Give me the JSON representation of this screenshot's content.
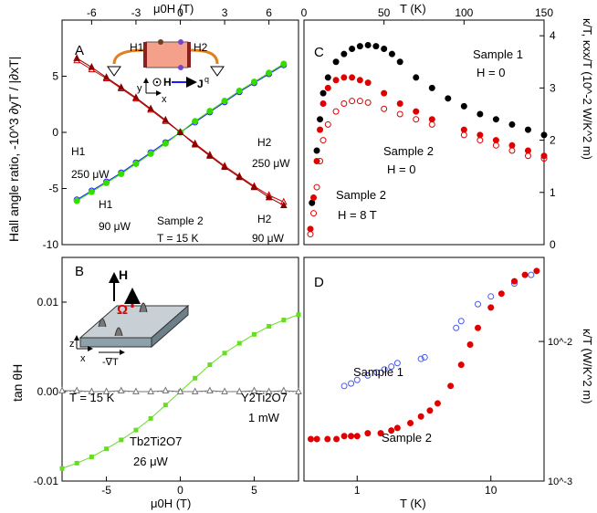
{
  "chart_data": [
    {
      "panel": "A",
      "type": "line",
      "xlabel_top": "μ0H (T)",
      "ylabel": "Hall angle ratio, -10^3 ∂yT / |∂xT|",
      "xlim": [
        -8,
        8
      ],
      "ylim": [
        -10,
        10
      ],
      "x_ticks_top": [
        -6,
        -3,
        0,
        3,
        6
      ],
      "y_ticks": [
        -10,
        -5,
        0,
        5
      ],
      "series": [
        {
          "name": "H1 250 μW",
          "marker": "open-circle",
          "color": "#1a1aff",
          "x": [
            -7,
            -6,
            -5,
            -4,
            -3,
            -2,
            -1,
            0,
            1,
            2,
            3,
            4,
            5,
            6,
            7
          ],
          "y": [
            -6.0,
            -5.2,
            -4.4,
            -3.6,
            -2.7,
            -1.8,
            -0.9,
            0,
            0.9,
            1.8,
            2.7,
            3.6,
            4.4,
            5.2,
            6.0
          ]
        },
        {
          "name": "H1 90 μW",
          "marker": "filled-circle",
          "color": "#33dd00",
          "x": [
            -7,
            -6,
            -5,
            -4,
            -3,
            -2,
            -1,
            0,
            1,
            2,
            3,
            4,
            5,
            6,
            7
          ],
          "y": [
            -6.1,
            -5.3,
            -4.5,
            -3.7,
            -2.8,
            -1.9,
            -1.0,
            0,
            1.0,
            1.9,
            2.8,
            3.7,
            4.5,
            5.3,
            6.1
          ]
        },
        {
          "name": "H2 250 μW",
          "marker": "open-triangle",
          "color": "#cc0000",
          "x": [
            -7,
            -6,
            -5,
            -4,
            -3,
            -2,
            -1,
            0,
            1,
            2,
            3,
            4,
            5,
            6,
            7
          ],
          "y": [
            6.4,
            5.6,
            4.8,
            3.9,
            3.0,
            2.0,
            1.0,
            0,
            -1.0,
            -2.0,
            -3.0,
            -3.9,
            -4.8,
            -5.6,
            -6.2
          ]
        },
        {
          "name": "H2 90 μW",
          "marker": "filled-triangle",
          "color": "#8b0000",
          "x": [
            -7,
            -6,
            -5,
            -4,
            -3,
            -2,
            -1,
            0,
            1,
            2,
            3,
            4,
            5,
            6,
            7
          ],
          "y": [
            6.6,
            5.8,
            4.9,
            4.0,
            3.1,
            2.1,
            1.1,
            0,
            -1.1,
            -2.1,
            -3.1,
            -4.0,
            -4.9,
            -5.8,
            -6.5
          ]
        }
      ],
      "annotations": [
        "A",
        "H1",
        "250 μW",
        "H1",
        "90 μW",
        "H2",
        "250 μW",
        "H2",
        "90 μW",
        "Sample 2",
        "T = 15 K",
        "H1",
        "H2",
        "H",
        "J",
        "q",
        "y",
        "x"
      ]
    },
    {
      "panel": "B",
      "type": "scatter",
      "xlabel": "μ0H (T)",
      "ylabel": "tan θH",
      "xlim": [
        -8,
        8
      ],
      "ylim": [
        -0.01,
        0.015
      ],
      "x_ticks": [
        -5,
        0,
        5
      ],
      "y_ticks": [
        -0.01,
        0.0,
        0.01
      ],
      "x_tick_labels": [
        "-5",
        "0",
        "5"
      ],
      "y_tick_labels": [
        "-0.01",
        "0.00",
        "0.01"
      ],
      "series": [
        {
          "name": "Tb2Ti2O7 26 μW",
          "marker": "filled-square",
          "color": "#66dd22",
          "x": [
            -8,
            -7,
            -6,
            -5,
            -4,
            -3,
            -2,
            -1,
            0,
            1,
            2,
            3,
            4,
            5,
            6,
            7,
            8
          ],
          "y": [
            -0.0086,
            -0.008,
            -0.0073,
            -0.0064,
            -0.0054,
            -0.0043,
            -0.003,
            -0.0015,
            0.0,
            0.0015,
            0.003,
            0.0043,
            0.0054,
            0.0064,
            0.0073,
            0.008,
            0.0086
          ]
        },
        {
          "name": "Y2Ti2O7 1 mW",
          "marker": "open-triangle",
          "color": "#777777",
          "x": [
            -8,
            -7,
            -6,
            -5,
            -4,
            -3,
            -2,
            -1,
            0,
            1,
            2,
            3,
            4,
            5,
            6,
            7,
            8
          ],
          "y": [
            0.0001,
            0.0001,
            0.0,
            0.0,
            0.0001,
            0.0,
            0.0,
            0.0001,
            0.0,
            0.0,
            0.0001,
            0.0,
            0.0,
            0.0001,
            0.0,
            0.0001,
            0.0
          ]
        }
      ],
      "annotations": [
        "B",
        "T = 15 K",
        "Tb2Ti2O7",
        "26 μW",
        "Y2Ti2O7",
        "1 mW",
        "H",
        "Ω",
        "z",
        "x",
        "-∇T"
      ]
    },
    {
      "panel": "C",
      "type": "scatter",
      "xlabel_top": "T (K)",
      "ylabel_right": "κ/T, κxx/T (10^-2 W/K^2 m)",
      "xlim": [
        0,
        150
      ],
      "ylim": [
        0,
        4.3
      ],
      "x_ticks_top": [
        0,
        50,
        100,
        150
      ],
      "y_ticks": [
        0,
        1,
        2,
        3,
        4
      ],
      "series": [
        {
          "name": "Sample 1 H = 0",
          "marker": "filled-circle",
          "color": "#000000",
          "x": [
            5,
            8,
            10,
            12,
            15,
            20,
            25,
            30,
            35,
            40,
            45,
            50,
            55,
            60,
            70,
            80,
            90,
            100,
            110,
            120,
            130,
            140,
            150
          ],
          "y": [
            0.8,
            1.8,
            2.4,
            2.9,
            3.2,
            3.5,
            3.65,
            3.75,
            3.8,
            3.82,
            3.8,
            3.75,
            3.65,
            3.5,
            3.2,
            3.0,
            2.8,
            2.65,
            2.5,
            2.4,
            2.3,
            2.2,
            2.1
          ]
        },
        {
          "name": "Sample 2 H = 0",
          "marker": "filled-circle",
          "color": "#e00000",
          "x": [
            4,
            6,
            8,
            10,
            12,
            15,
            20,
            25,
            30,
            35,
            40,
            50,
            60,
            70,
            80,
            100,
            110,
            120,
            130,
            140,
            150
          ],
          "y": [
            0.3,
            0.9,
            1.6,
            2.2,
            2.7,
            3.0,
            3.15,
            3.2,
            3.2,
            3.15,
            3.1,
            2.9,
            2.7,
            2.55,
            2.4,
            2.2,
            2.1,
            2.0,
            1.9,
            1.8,
            1.7
          ]
        },
        {
          "name": "Sample 2 H = 8 T",
          "marker": "open-circle",
          "color": "#e00000",
          "x": [
            4,
            6,
            8,
            10,
            12,
            15,
            20,
            25,
            30,
            35,
            40,
            50,
            60,
            70,
            80,
            100,
            110,
            120,
            130,
            140,
            150
          ],
          "y": [
            0.2,
            0.6,
            1.1,
            1.6,
            2.0,
            2.3,
            2.55,
            2.7,
            2.75,
            2.75,
            2.72,
            2.6,
            2.5,
            2.4,
            2.3,
            2.1,
            2.0,
            1.9,
            1.8,
            1.7,
            1.65
          ]
        }
      ],
      "annotations": [
        "C",
        "Sample 1",
        "H = 0",
        "Sample 2",
        "H = 0",
        "Sample 2",
        "H = 8 T"
      ]
    },
    {
      "panel": "D",
      "type": "scatter",
      "xlabel": "T (K)",
      "ylabel_right": "κ/T (W/K^2 m)",
      "x_scale": "log",
      "y_scale": "log",
      "xlim": [
        0.4,
        25
      ],
      "ylim": [
        0.001,
        0.04
      ],
      "x_ticks": [
        1,
        10
      ],
      "y_ticks": [
        0.001,
        0.01
      ],
      "x_tick_labels": [
        "1",
        "10"
      ],
      "y_tick_labels": [
        "10^-3",
        "10^-2"
      ],
      "series": [
        {
          "name": "Sample 1",
          "marker": "open-circle",
          "color": "#4a5ae8",
          "x": [
            0.8,
            0.9,
            1.0,
            1.2,
            1.4,
            1.6,
            1.8,
            2.0,
            3.0,
            3.2,
            5.5,
            6.0,
            8.0,
            10.0,
            15.0,
            20.0
          ],
          "y": [
            0.0048,
            0.005,
            0.0053,
            0.0057,
            0.006,
            0.0063,
            0.0066,
            0.007,
            0.0075,
            0.0077,
            0.0125,
            0.014,
            0.0185,
            0.021,
            0.026,
            0.03
          ]
        },
        {
          "name": "Sample 2",
          "marker": "filled-circle",
          "color": "#e00000",
          "x": [
            0.45,
            0.5,
            0.6,
            0.7,
            0.8,
            0.9,
            1.0,
            1.2,
            1.5,
            1.8,
            2.0,
            2.5,
            3.0,
            3.5,
            4.0,
            5.0,
            6.0,
            7.0,
            8.0,
            10.0,
            12.0,
            15.0,
            18.0,
            22.0
          ],
          "y": [
            0.002,
            0.002,
            0.002,
            0.002,
            0.0021,
            0.0021,
            0.0021,
            0.0022,
            0.0022,
            0.0023,
            0.0024,
            0.0026,
            0.0029,
            0.0032,
            0.0036,
            0.0048,
            0.0068,
            0.0095,
            0.0125,
            0.0175,
            0.022,
            0.027,
            0.03,
            0.032
          ]
        }
      ],
      "annotations": [
        "D",
        "Sample 1",
        "Sample 2"
      ]
    }
  ]
}
